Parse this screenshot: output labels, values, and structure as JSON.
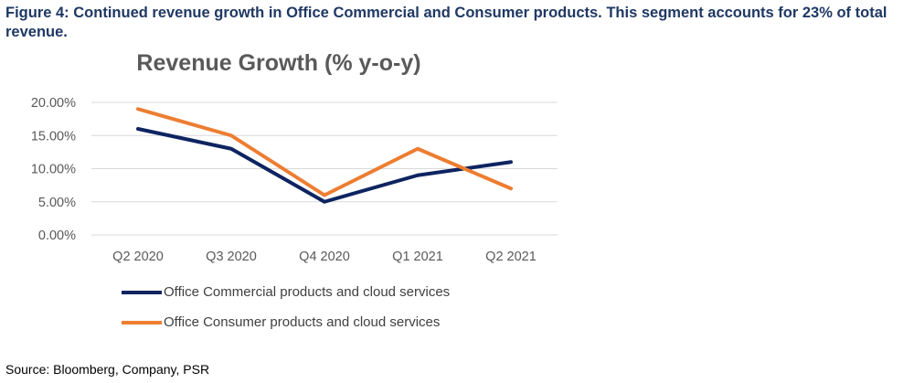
{
  "figure_caption": "Figure 4: Continued revenue growth in Office Commercial and Consumer products. This segment accounts for 23% of total revenue.",
  "source": "Source: Bloomberg, Company, PSR",
  "colors": {
    "commercial": "#0e2461",
    "consumer": "#ed7d31",
    "grid": "#d9d9d9",
    "caption": "#1f3864"
  },
  "chart_data": {
    "type": "line",
    "title": "Revenue Growth (% y-o-y)",
    "xlabel": "",
    "ylabel": "",
    "categories": [
      "Q2 2020",
      "Q3 2020",
      "Q4 2020",
      "Q1 2021",
      "Q2 2021"
    ],
    "ylim": [
      0,
      20
    ],
    "yticks": [
      "0.00%",
      "5.00%",
      "10.00%",
      "15.00%",
      "20.00%"
    ],
    "grid": true,
    "legend_position": "bottom",
    "series": [
      {
        "name": "Office Commercial products and cloud services",
        "values": [
          16,
          13,
          5,
          9,
          11
        ]
      },
      {
        "name": "Office Consumer products and cloud services",
        "values": [
          19,
          15,
          6,
          13,
          7
        ]
      }
    ]
  }
}
